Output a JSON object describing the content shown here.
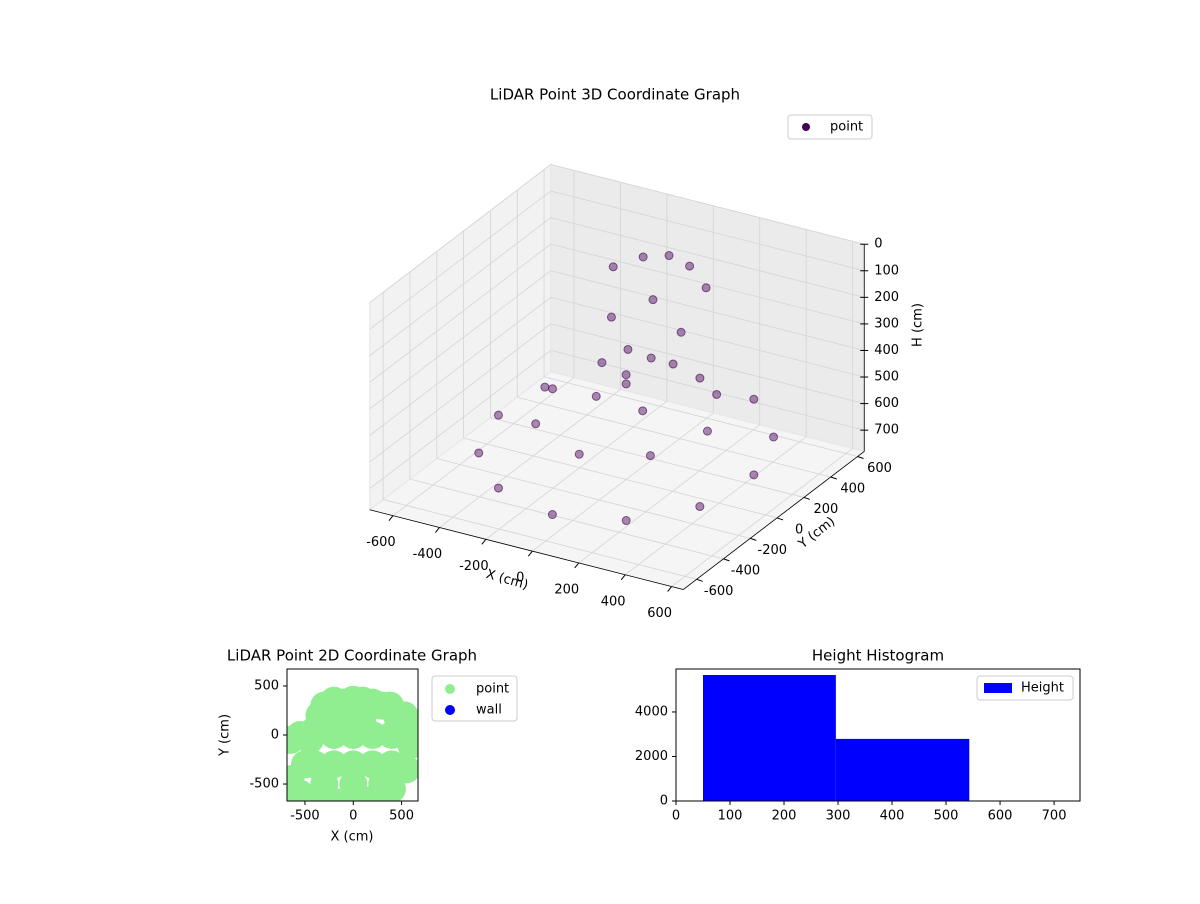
{
  "chart_data": [
    {
      "type": "scatter3d",
      "title": "LiDAR Point 3D Coordinate Graph",
      "xlabel": "X (cm)",
      "ylabel": "Y (cm)",
      "zlabel": "H (cm)",
      "xlim": [
        -700,
        650
      ],
      "ylim": [
        -700,
        650
      ],
      "zlim": [
        0,
        780
      ],
      "z_inverted": true,
      "xticks": [
        -600,
        -400,
        -200,
        0,
        200,
        400,
        600
      ],
      "yticks": [
        -600,
        -400,
        -200,
        0,
        200,
        400,
        600
      ],
      "zticks": [
        0,
        100,
        200,
        300,
        400,
        500,
        600,
        700
      ],
      "grid": true,
      "legend": "upper right",
      "series": [
        {
          "name": "point",
          "color": "#440154",
          "x": [
            550,
            476,
            275,
            0,
            -275,
            -476,
            -550,
            -476,
            -275,
            0,
            275,
            476,
            350,
            247,
            0,
            -247,
            -350,
            -247,
            0,
            247,
            -100,
            0,
            100,
            200,
            -200,
            150,
            -150,
            0,
            50,
            -50,
            0,
            100,
            -100
          ],
          "y": [
            0,
            275,
            476,
            550,
            476,
            275,
            0,
            -275,
            -476,
            -550,
            -476,
            -275,
            0,
            247,
            350,
            247,
            0,
            -247,
            -350,
            -247,
            300,
            320,
            300,
            250,
            250,
            150,
            150,
            200,
            100,
            100,
            0,
            -50,
            -50
          ],
          "z": [
            640,
            620,
            600,
            610,
            630,
            650,
            660,
            680,
            690,
            700,
            690,
            670,
            520,
            500,
            480,
            490,
            510,
            530,
            550,
            540,
            80,
            60,
            70,
            110,
            120,
            250,
            260,
            180,
            350,
            340,
            420,
            480,
            470
          ]
        }
      ]
    },
    {
      "type": "scatter",
      "title": "LiDAR Point 2D Coordinate Graph",
      "xlabel": "X (cm)",
      "ylabel": "Y (cm)",
      "xlim": [
        -686,
        670
      ],
      "ylim": [
        -673,
        673
      ],
      "xticks": [
        -500,
        0,
        500
      ],
      "yticks": [
        -500,
        0,
        500
      ],
      "legend": "outside right",
      "series": [
        {
          "name": "point",
          "color": "#90ee90",
          "x": [
            -650,
            -650,
            -550,
            -400,
            -200,
            0,
            200,
            400,
            550,
            600,
            600,
            530,
            450,
            380,
            300,
            200,
            100,
            0,
            -100,
            -200,
            -300,
            -350,
            -400,
            -450,
            -550,
            -400,
            -200,
            0,
            200,
            400,
            -200,
            0,
            200,
            400,
            -100,
            100,
            0,
            -300,
            300,
            -500
          ],
          "y": [
            -50,
            -450,
            -600,
            -650,
            -680,
            -690,
            -660,
            -550,
            -350,
            -100,
            100,
            200,
            200,
            300,
            300,
            330,
            350,
            360,
            330,
            350,
            300,
            200,
            50,
            -50,
            0,
            -300,
            -300,
            -300,
            -300,
            -300,
            0,
            0,
            0,
            0,
            200,
            200,
            -500,
            -500,
            -500,
            -300
          ]
        },
        {
          "name": "wall",
          "color": "#0000ff",
          "x": [],
          "y": []
        }
      ]
    },
    {
      "type": "histogram",
      "title": "Height Histogram",
      "bins": [
        50,
        296,
        543
      ],
      "xlim": [
        0,
        748
      ],
      "ylim": [
        0,
        5930
      ],
      "xticks": [
        0,
        100,
        200,
        300,
        400,
        500,
        600,
        700
      ],
      "yticks": [
        0,
        2000,
        4000
      ],
      "legend": "upper right",
      "series": [
        {
          "name": "Height",
          "color": "#0000ff",
          "values": [
            5660,
            2790
          ]
        }
      ]
    }
  ]
}
